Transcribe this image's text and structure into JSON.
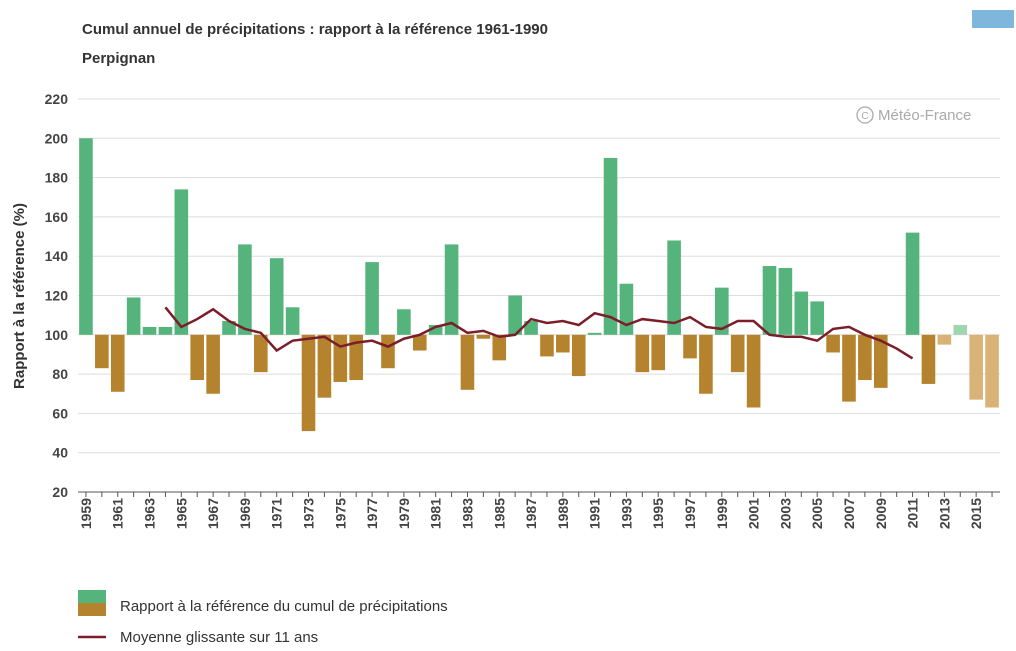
{
  "chart_data": {
    "type": "bar",
    "title": "Cumul annuel de précipitations : rapport à la référence 1961-1990",
    "subtitle": "Perpignan",
    "y_label": "Rapport à la référence (%)",
    "credit": "Météo-France",
    "categories": [
      "1959",
      null,
      "1961",
      null,
      "1963",
      null,
      "1965",
      null,
      "1967",
      null,
      "1969",
      null,
      "1971",
      null,
      "1973",
      null,
      "1975",
      null,
      "1977",
      null,
      "1979",
      null,
      "1981",
      null,
      "1983",
      null,
      "1985",
      null,
      "1987",
      null,
      "1989",
      null,
      "1991",
      null,
      "1993",
      null,
      "1995",
      null,
      "1997",
      null,
      "1999",
      null,
      "2001",
      null,
      "2003",
      null,
      "2005",
      null,
      "2007",
      null,
      "2009",
      null,
      "2011",
      null,
      "2013",
      null,
      "2015",
      null
    ],
    "baseline": 100,
    "series": [
      {
        "name": "Rapport à la référence du cumul de précipitations",
        "type": "bar",
        "colors": [
          "#55b47c",
          "#b5832d",
          "#b5832d",
          "#55b47c",
          "#55b47c",
          "#55b47c",
          "#55b47c",
          "#b5832d",
          "#b5832d",
          "#55b47c",
          "#55b47c",
          "#b5832d",
          "#55b47c",
          "#55b47c",
          "#b5832d",
          "#b5832d",
          "#b5832d",
          "#b5832d",
          "#55b47c",
          "#b5832d",
          "#55b47c",
          "#b5832d",
          "#55b47c",
          "#55b47c",
          "#b5832d",
          "#b5832d",
          "#b5832d",
          "#55b47c",
          "#55b47c",
          "#b5832d",
          "#b5832d",
          "#b5832d",
          "#55b47c",
          "#55b47c",
          "#55b47c",
          "#b5832d",
          "#b5832d",
          "#55b47c",
          "#b5832d",
          "#b5832d",
          "#55b47c",
          "#b5832d",
          "#b5832d",
          "#55b47c",
          "#55b47c",
          "#55b47c",
          "#55b47c",
          "#b5832d",
          "#b5832d",
          "#b5832d",
          "#b5832d",
          "#55b47c",
          "#55b47c",
          "#b5832d",
          "#d9b278",
          "#9fd6b0",
          "#d9b278",
          "#d9b278"
        ],
        "values": [
          200,
          83,
          71,
          119,
          104,
          104,
          174,
          77,
          70,
          107,
          146,
          81,
          139,
          114,
          51,
          68,
          76,
          77,
          137,
          83,
          113,
          92,
          105,
          146,
          72,
          98,
          87,
          120,
          107,
          89,
          91,
          79,
          101,
          190,
          126,
          81,
          82,
          148,
          88,
          70,
          124,
          81,
          63,
          135,
          134,
          122,
          117,
          91,
          66,
          77,
          73,
          100,
          152,
          75,
          95,
          105,
          67,
          63
        ]
      },
      {
        "name": "Moyenne glissante sur 11 ans",
        "type": "line",
        "color": "#7b1e2a",
        "values": [
          null,
          null,
          null,
          null,
          null,
          114,
          104,
          108,
          113,
          107,
          103,
          101,
          92,
          97,
          98,
          99,
          94,
          96,
          97,
          94,
          98,
          100,
          104,
          106,
          101,
          102,
          99,
          100,
          108,
          106,
          107,
          105,
          111,
          109,
          105,
          108,
          107,
          106,
          109,
          104,
          103,
          107,
          107,
          100,
          99,
          99,
          97,
          103,
          104,
          100,
          97,
          93,
          88,
          null,
          null,
          null,
          null,
          null
        ]
      }
    ],
    "ylim": [
      20,
      220
    ],
    "yticks": [
      20,
      40,
      60,
      80,
      100,
      120,
      140,
      160,
      180,
      200,
      220
    ],
    "grid": true
  }
}
